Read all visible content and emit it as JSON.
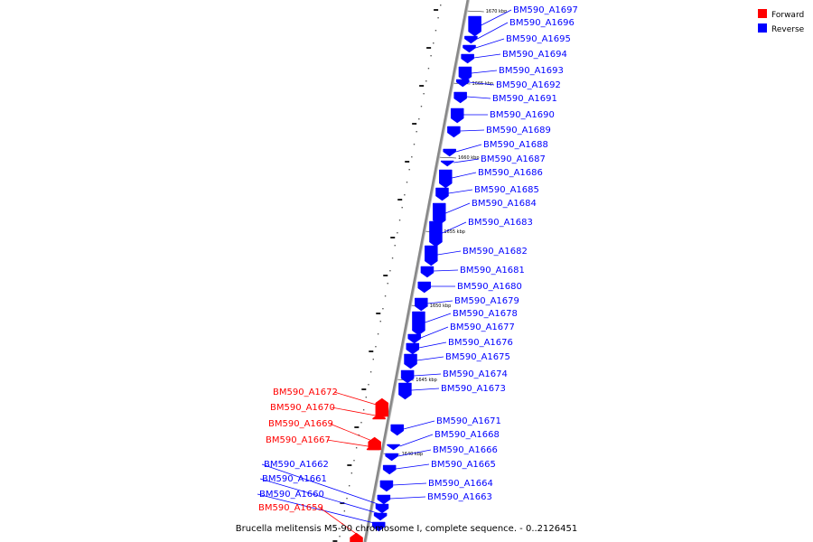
{
  "caption": "Brucella melitensis M5-90 chromosome I, complete sequence. - 0..2126451",
  "legend": [
    {
      "label": "Forward",
      "color": "#ff0000"
    },
    {
      "label": "Reverse",
      "color": "#0000ff"
    }
  ],
  "colors": {
    "forward": "#ff0000",
    "reverse": "#0000ff",
    "backbone": "#888888"
  },
  "ticks": [
    "1670 kbp",
    "1665 kbp",
    "1660 kbp",
    "1655 kbp",
    "1650 kbp",
    "1645 kbp",
    "1640 kbp"
  ],
  "genes": [
    {
      "name": "BM590_A1697",
      "strand": "reverse"
    },
    {
      "name": "BM590_A1696",
      "strand": "reverse"
    },
    {
      "name": "BM590_A1695",
      "strand": "reverse"
    },
    {
      "name": "BM590_A1694",
      "strand": "reverse"
    },
    {
      "name": "BM590_A1693",
      "strand": "reverse"
    },
    {
      "name": "BM590_A1692",
      "strand": "reverse"
    },
    {
      "name": "BM590_A1691",
      "strand": "reverse"
    },
    {
      "name": "BM590_A1690",
      "strand": "reverse"
    },
    {
      "name": "BM590_A1689",
      "strand": "reverse"
    },
    {
      "name": "BM590_A1688",
      "strand": "reverse"
    },
    {
      "name": "BM590_A1687",
      "strand": "reverse"
    },
    {
      "name": "BM590_A1686",
      "strand": "reverse"
    },
    {
      "name": "BM590_A1685",
      "strand": "reverse"
    },
    {
      "name": "BM590_A1684",
      "strand": "reverse"
    },
    {
      "name": "BM590_A1683",
      "strand": "reverse"
    },
    {
      "name": "BM590_A1682",
      "strand": "reverse"
    },
    {
      "name": "BM590_A1681",
      "strand": "reverse"
    },
    {
      "name": "BM590_A1680",
      "strand": "reverse"
    },
    {
      "name": "BM590_A1679",
      "strand": "reverse"
    },
    {
      "name": "BM590_A1678",
      "strand": "reverse"
    },
    {
      "name": "BM590_A1677",
      "strand": "reverse"
    },
    {
      "name": "BM590_A1676",
      "strand": "reverse"
    },
    {
      "name": "BM590_A1675",
      "strand": "reverse"
    },
    {
      "name": "BM590_A1674",
      "strand": "reverse"
    },
    {
      "name": "BM590_A1673",
      "strand": "reverse"
    },
    {
      "name": "BM590_A1672",
      "strand": "forward"
    },
    {
      "name": "BM590_A1670",
      "strand": "forward"
    },
    {
      "name": "BM590_A1669",
      "strand": "forward"
    },
    {
      "name": "BM590_A1667",
      "strand": "forward"
    },
    {
      "name": "BM590_A1671",
      "strand": "reverse"
    },
    {
      "name": "BM590_A1668",
      "strand": "reverse"
    },
    {
      "name": "BM590_A1666",
      "strand": "reverse"
    },
    {
      "name": "BM590_A1665",
      "strand": "reverse"
    },
    {
      "name": "BM590_A1664",
      "strand": "reverse"
    },
    {
      "name": "BM590_A1663",
      "strand": "reverse"
    },
    {
      "name": "BM590_A1662",
      "strand": "reverse"
    },
    {
      "name": "BM590_A1661",
      "strand": "reverse"
    },
    {
      "name": "BM590_A1660",
      "strand": "reverse"
    },
    {
      "name": "BM590_A1659",
      "strand": "forward"
    }
  ]
}
